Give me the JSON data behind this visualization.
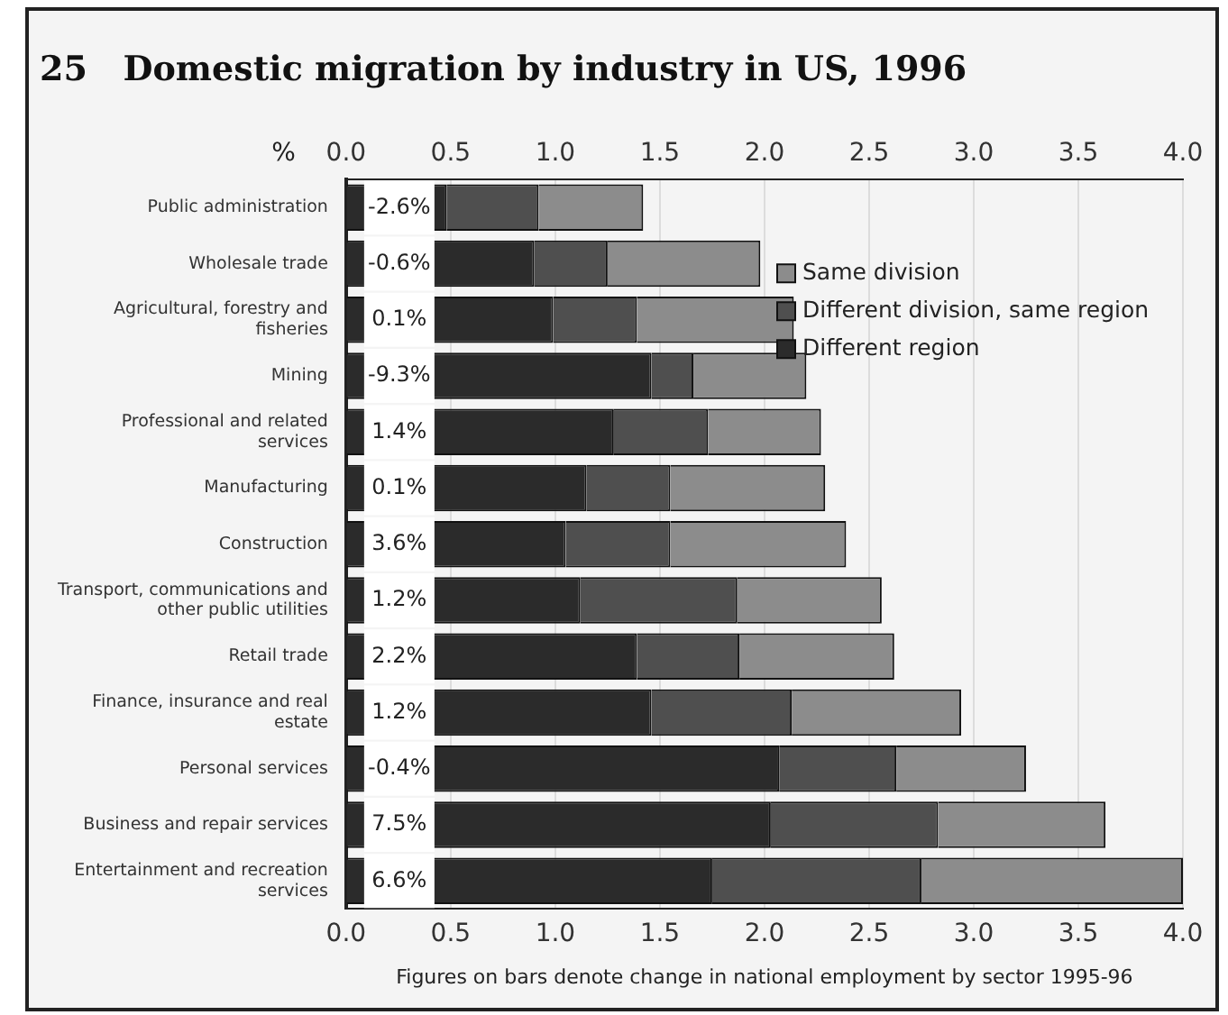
{
  "chart_data": {
    "type": "bar",
    "orientation": "horizontal",
    "stacked": true,
    "title": "25   Domestic migration by industry in US, 1996",
    "x2label": "%",
    "categories": [
      "Public administration",
      "Wholesale trade",
      "Agricultural, forestry and fisheries",
      "Mining",
      "Professional and related services",
      "Manufacturing",
      "Construction",
      "Transport, communications and other public utilities",
      "Retail trade",
      "Finance, insurance and real estate",
      "Personal services",
      "Business and repair services",
      "Entertainment and recreation services"
    ],
    "series": [
      {
        "name": "Different region",
        "color": "#2b2b2b",
        "values": [
          0.48,
          0.9,
          0.99,
          1.46,
          1.28,
          1.15,
          1.05,
          1.12,
          1.39,
          1.46,
          2.07,
          2.03,
          1.75
        ]
      },
      {
        "name": "Different division, same region",
        "color": "#4f4f4f",
        "values": [
          0.44,
          0.35,
          0.4,
          0.2,
          0.45,
          0.4,
          0.5,
          0.75,
          0.49,
          0.67,
          0.56,
          0.8,
          1.0
        ]
      },
      {
        "name": "Same division",
        "color": "#8c8c8c",
        "values": [
          0.5,
          0.73,
          0.75,
          0.54,
          0.54,
          0.74,
          0.84,
          0.69,
          0.74,
          0.81,
          0.62,
          0.8,
          1.25
        ]
      }
    ],
    "xlim": [
      0,
      4
    ],
    "xticks": [
      {
        "value": 0,
        "label": "0.0"
      },
      {
        "value": 0.5,
        "label": "0.5"
      },
      {
        "value": 1,
        "label": "1.0"
      },
      {
        "value": 1.5,
        "label": "1.5"
      },
      {
        "value": 2,
        "label": "2.0"
      },
      {
        "value": 2.5,
        "label": "2.5"
      },
      {
        "value": 3,
        "label": "3.0"
      },
      {
        "value": 3.5,
        "label": "3.5"
      },
      {
        "value": 4,
        "label": "4.0"
      }
    ],
    "x2lim": [
      0,
      4
    ],
    "x2ticks": [
      {
        "value": 0,
        "label": "0.0"
      },
      {
        "value": 0.5,
        "label": "0.5"
      },
      {
        "value": 1,
        "label": "1.0"
      },
      {
        "value": 1.5,
        "label": "1.5"
      },
      {
        "value": 2,
        "label": "2.0"
      },
      {
        "value": 2.5,
        "label": "2.5"
      },
      {
        "value": 3,
        "label": "3.0"
      },
      {
        "value": 3.5,
        "label": "3.5"
      },
      {
        "value": 4,
        "label": "4.0"
      }
    ],
    "grid": "x",
    "legend": "top right",
    "annotations": [
      {
        "text": "-2.6%",
        "y": "Public administration"
      },
      {
        "text": "-0.6%",
        "y": "Wholesale trade"
      },
      {
        "text": "0.1%",
        "y": "Agricultural, forestry and fisheries"
      },
      {
        "text": "-9.3%",
        "y": "Mining"
      },
      {
        "text": "1.4%",
        "y": "Professional and related services"
      },
      {
        "text": "0.1%",
        "y": "Manufacturing"
      },
      {
        "text": "3.6%",
        "y": "Construction"
      },
      {
        "text": "1.2%",
        "y": "Transport, communications and other public utilities"
      },
      {
        "text": "2.2%",
        "y": "Retail trade"
      },
      {
        "text": "1.2%",
        "y": "Finance, insurance and real estate"
      },
      {
        "text": "-0.4%",
        "y": "Personal services"
      },
      {
        "text": "7.5%",
        "y": "Business and repair services"
      },
      {
        "text": "6.6%",
        "y": "Entertainment and recreation services"
      },
      "Figures on bars denote change in national employment by sector 1995-96"
    ]
  }
}
